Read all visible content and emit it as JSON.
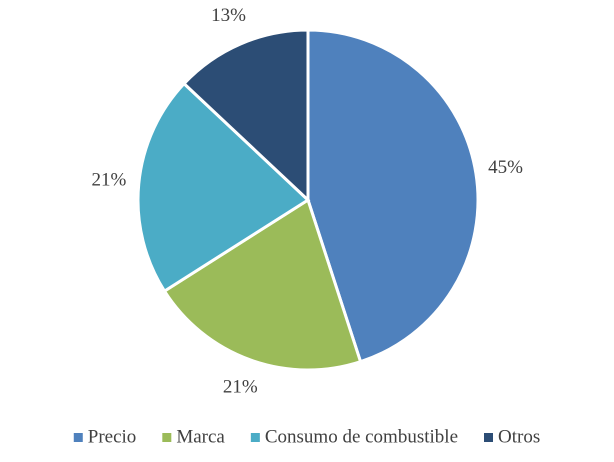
{
  "chart_data": {
    "type": "pie",
    "categories": [
      "Precio",
      "Marca",
      "Consumo de combustible",
      "Otros"
    ],
    "values": [
      45,
      21,
      21,
      13
    ],
    "value_labels": [
      "45%",
      "21%",
      "21%",
      "13%"
    ],
    "colors": [
      "#4f81bd",
      "#9bbb59",
      "#4bacc6",
      "#2c4d75"
    ],
    "legend": "bottom"
  }
}
